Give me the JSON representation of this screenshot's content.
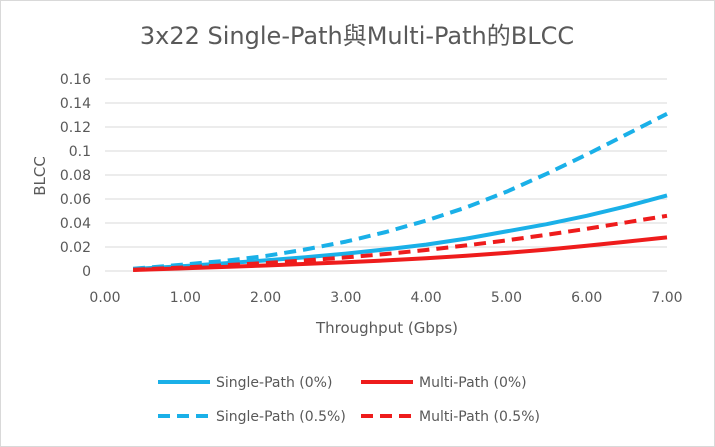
{
  "chart_data": {
    "type": "line",
    "title": "3x22 Single-Path與Multi-Path的BLCC",
    "xlabel": "Throughput (Gbps)",
    "ylabel": "BLCC",
    "xlim": [
      0,
      7
    ],
    "ylim": [
      0,
      0.16
    ],
    "x_ticks": [
      "0.00",
      "1.00",
      "2.00",
      "3.00",
      "4.00",
      "5.00",
      "6.00",
      "7.00"
    ],
    "y_ticks": [
      "0",
      "0.02",
      "0.04",
      "0.06",
      "0.08",
      "0.1",
      "0.12",
      "0.14",
      "0.16"
    ],
    "grid": "horizontal",
    "legend_position": "bottom",
    "x": [
      0.35,
      0.5,
      1.0,
      1.5,
      2.0,
      2.5,
      3.0,
      3.5,
      4.0,
      4.5,
      5.0,
      5.5,
      6.0,
      6.5,
      7.0
    ],
    "series": [
      {
        "name": "Single-Path (0%)",
        "color": "#1ab0e8",
        "dash": "solid",
        "values": [
          0.0015,
          0.0022,
          0.0042,
          0.0065,
          0.0088,
          0.0115,
          0.0145,
          0.018,
          0.022,
          0.027,
          0.033,
          0.039,
          0.046,
          0.054,
          0.063
        ]
      },
      {
        "name": "Multi-Path (0%)",
        "color": "#ee1c1c",
        "dash": "solid",
        "values": [
          0.0008,
          0.0012,
          0.0023,
          0.0034,
          0.0046,
          0.0059,
          0.0073,
          0.0088,
          0.0106,
          0.0127,
          0.0151,
          0.0178,
          0.021,
          0.0245,
          0.028
        ]
      },
      {
        "name": "Single-Path (0.5%)",
        "color": "#1ab0e8",
        "dash": "dashed",
        "values": [
          0.0018,
          0.0027,
          0.0055,
          0.0085,
          0.0125,
          0.018,
          0.0245,
          0.0325,
          0.042,
          0.053,
          0.066,
          0.081,
          0.097,
          0.114,
          0.131
        ]
      },
      {
        "name": "Multi-Path (0.5%)",
        "color": "#ee1c1c",
        "dash": "dashed",
        "values": [
          0.001,
          0.0015,
          0.003,
          0.0048,
          0.0067,
          0.0088,
          0.0113,
          0.0142,
          0.0175,
          0.0213,
          0.0255,
          0.0302,
          0.0352,
          0.0406,
          0.046
        ]
      }
    ]
  }
}
